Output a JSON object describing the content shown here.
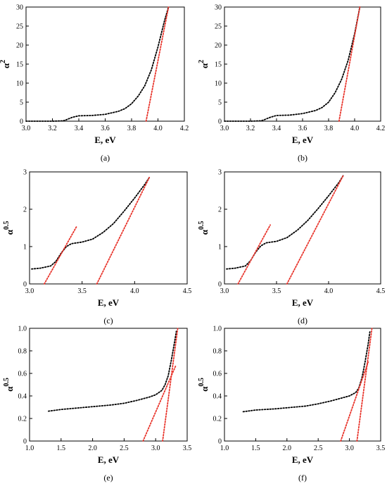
{
  "chart_data": [
    {
      "panel": "(a)",
      "type": "line",
      "xlabel": "E, eV",
      "ylabel_base": "α",
      "ylabel_exp": "2",
      "xlim": [
        3.0,
        4.2
      ],
      "ylim": [
        0,
        30
      ],
      "xticks": [
        "3.0",
        "3.2",
        "3.4",
        "3.6",
        "3.8",
        "4.0",
        "4.2"
      ],
      "yticks": [
        "0",
        "5",
        "10",
        "15",
        "20",
        "25",
        "30"
      ],
      "grid": false,
      "series": [
        {
          "color": "#000000",
          "style": "dotted",
          "x": [
            3.0,
            3.1,
            3.2,
            3.28,
            3.3,
            3.35,
            3.4,
            3.5,
            3.6,
            3.7,
            3.75,
            3.8,
            3.85,
            3.9,
            3.95,
            4.0,
            4.05,
            4.08
          ],
          "y": [
            0,
            0,
            0,
            0.1,
            0.3,
            1.0,
            1.4,
            1.5,
            1.8,
            2.6,
            3.3,
            4.6,
            6.6,
            9.3,
            13.5,
            19.5,
            26.5,
            30
          ]
        },
        {
          "color": "#e8332a",
          "style": "dotted",
          "x": [
            3.91,
            4.08
          ],
          "y": [
            0,
            30
          ]
        }
      ]
    },
    {
      "panel": "(b)",
      "type": "line",
      "xlabel": "E, eV",
      "ylabel_base": "α",
      "ylabel_exp": "2",
      "xlim": [
        3.0,
        4.2
      ],
      "ylim": [
        0,
        30
      ],
      "xticks": [
        "3.0",
        "3.2",
        "3.4",
        "3.6",
        "3.8",
        "4.0",
        "4.2"
      ],
      "yticks": [
        "0",
        "5",
        "10",
        "15",
        "20",
        "25",
        "30"
      ],
      "grid": false,
      "series": [
        {
          "color": "#000000",
          "style": "dotted",
          "x": [
            3.0,
            3.1,
            3.2,
            3.28,
            3.3,
            3.35,
            3.4,
            3.5,
            3.6,
            3.7,
            3.75,
            3.8,
            3.85,
            3.9,
            3.95,
            4.0,
            4.04
          ],
          "y": [
            0,
            0,
            0,
            0.1,
            0.3,
            1.0,
            1.5,
            1.6,
            2.0,
            2.8,
            3.6,
            5.0,
            7.5,
            11.0,
            16.0,
            23.0,
            30
          ]
        },
        {
          "color": "#e8332a",
          "style": "dotted",
          "x": [
            3.88,
            4.04
          ],
          "y": [
            0,
            30
          ]
        }
      ]
    },
    {
      "panel": "(c)",
      "type": "line",
      "xlabel": "E, eV",
      "ylabel_base": "α",
      "ylabel_exp": "0.5",
      "xlim": [
        3.0,
        4.5
      ],
      "ylim": [
        0,
        3
      ],
      "xticks": [
        "3.0",
        "3.5",
        "4.0",
        "4.5"
      ],
      "yticks": [
        "0",
        "1",
        "2",
        "3"
      ],
      "grid": false,
      "series": [
        {
          "color": "#000000",
          "style": "dotted",
          "x": [
            3.02,
            3.1,
            3.2,
            3.25,
            3.3,
            3.35,
            3.4,
            3.45,
            3.5,
            3.6,
            3.7,
            3.8,
            3.9,
            4.0,
            4.1,
            4.14
          ],
          "y": [
            0.4,
            0.42,
            0.48,
            0.6,
            0.82,
            1.0,
            1.08,
            1.1,
            1.12,
            1.2,
            1.38,
            1.62,
            1.95,
            2.3,
            2.68,
            2.85
          ]
        },
        {
          "color": "#e8332a",
          "style": "dotted",
          "x": [
            3.14,
            3.45
          ],
          "y": [
            0,
            1.55
          ]
        },
        {
          "color": "#e8332a",
          "style": "dotted",
          "x": [
            3.64,
            4.14
          ],
          "y": [
            0,
            2.85
          ]
        }
      ]
    },
    {
      "panel": "(d)",
      "type": "line",
      "xlabel": "E, eV",
      "ylabel_base": "α",
      "ylabel_exp": "0.5",
      "xlim": [
        3.0,
        4.5
      ],
      "ylim": [
        0,
        3
      ],
      "xticks": [
        "3.0",
        "3.5",
        "4.0",
        "4.5"
      ],
      "yticks": [
        "0",
        "1",
        "2",
        "3"
      ],
      "grid": false,
      "series": [
        {
          "color": "#000000",
          "style": "dotted",
          "x": [
            3.02,
            3.1,
            3.2,
            3.25,
            3.3,
            3.35,
            3.4,
            3.45,
            3.5,
            3.6,
            3.7,
            3.8,
            3.9,
            4.0,
            4.1,
            4.14
          ],
          "y": [
            0.4,
            0.42,
            0.48,
            0.62,
            0.85,
            1.02,
            1.1,
            1.12,
            1.14,
            1.24,
            1.44,
            1.7,
            2.02,
            2.36,
            2.72,
            2.9
          ]
        },
        {
          "color": "#e8332a",
          "style": "dotted",
          "x": [
            3.13,
            3.44
          ],
          "y": [
            0,
            1.58
          ]
        },
        {
          "color": "#e8332a",
          "style": "dotted",
          "x": [
            3.6,
            4.14
          ],
          "y": [
            0,
            2.9
          ]
        }
      ]
    },
    {
      "panel": "(e)",
      "type": "line",
      "xlabel": "E, eV",
      "ylabel_base": "α",
      "ylabel_exp": "0.5",
      "xlim": [
        1.0,
        3.5
      ],
      "ylim": [
        0,
        1.0
      ],
      "xticks": [
        "1.0",
        "1.5",
        "2.0",
        "2.5",
        "3.0",
        "3.5"
      ],
      "yticks": [
        "0",
        "0.2",
        "0.4",
        "0.6",
        "0.8",
        "1.0"
      ],
      "grid": false,
      "series": [
        {
          "color": "#000000",
          "style": "dotted",
          "x": [
            1.3,
            1.5,
            1.8,
            2.0,
            2.3,
            2.5,
            2.7,
            2.9,
            3.0,
            3.1,
            3.15,
            3.2,
            3.25,
            3.3,
            3.33
          ],
          "y": [
            0.265,
            0.28,
            0.295,
            0.305,
            0.32,
            0.335,
            0.36,
            0.39,
            0.41,
            0.45,
            0.5,
            0.58,
            0.72,
            0.88,
            0.98
          ]
        },
        {
          "color": "#e8332a",
          "style": "dotted",
          "x": [
            2.8,
            3.32
          ],
          "y": [
            0,
            0.67
          ]
        },
        {
          "color": "#e8332a",
          "style": "dotted",
          "x": [
            3.11,
            3.35
          ],
          "y": [
            0,
            1.0
          ]
        }
      ]
    },
    {
      "panel": "(f)",
      "type": "line",
      "xlabel": "E, eV",
      "ylabel_base": "α",
      "ylabel_exp": "0.5",
      "xlim": [
        1.0,
        3.5
      ],
      "ylim": [
        0,
        1.0
      ],
      "xticks": [
        "1.0",
        "1.5",
        "2.0",
        "2.5",
        "3.0",
        "3.5"
      ],
      "yticks": [
        "0",
        "0.2",
        "0.4",
        "0.6",
        "0.8",
        "1.0"
      ],
      "grid": false,
      "series": [
        {
          "color": "#000000",
          "style": "dotted",
          "x": [
            1.3,
            1.5,
            1.8,
            2.0,
            2.3,
            2.5,
            2.7,
            2.9,
            3.0,
            3.1,
            3.15,
            3.2,
            3.25,
            3.3,
            3.33
          ],
          "y": [
            0.26,
            0.275,
            0.285,
            0.295,
            0.31,
            0.33,
            0.355,
            0.385,
            0.4,
            0.43,
            0.47,
            0.56,
            0.7,
            0.86,
            0.98
          ]
        },
        {
          "color": "#e8332a",
          "style": "dotted",
          "x": [
            2.86,
            3.3
          ],
          "y": [
            0,
            0.7
          ]
        },
        {
          "color": "#e8332a",
          "style": "dotted",
          "x": [
            3.12,
            3.36
          ],
          "y": [
            0,
            1.0
          ]
        }
      ]
    }
  ]
}
